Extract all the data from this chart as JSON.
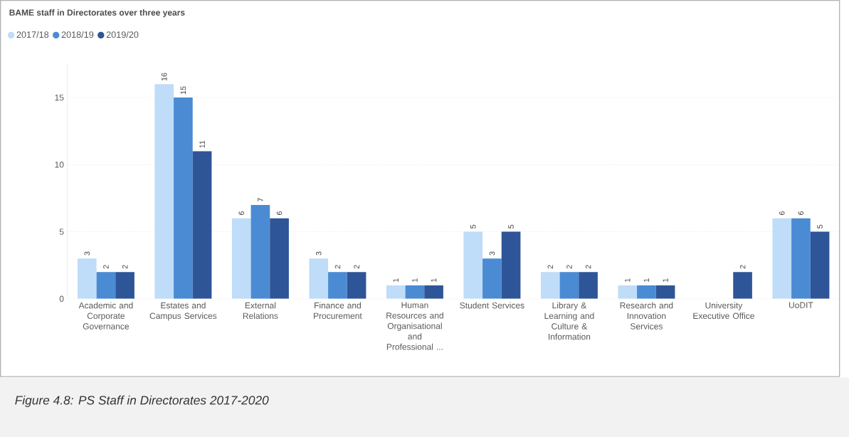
{
  "chart_data": {
    "type": "bar",
    "title": "BAME staff in Directorates over three years",
    "categories": [
      "Academic and Corporate Governance",
      "Estates and Campus Services",
      "External Relations",
      "Finance and Procurement",
      "Human Resources and Organisational and Professional ...",
      "Student Services",
      "Library & Learning and Culture & Information",
      "Research and Innovation Services",
      "University Executive Office",
      "UoDIT"
    ],
    "series": [
      {
        "name": "2017/18",
        "color": "#bfdcf8",
        "values": [
          3,
          16,
          6,
          3,
          1,
          5,
          2,
          1,
          null,
          6
        ]
      },
      {
        "name": "2018/19",
        "color": "#4a8bd4",
        "values": [
          2,
          15,
          7,
          2,
          1,
          3,
          2,
          1,
          null,
          6
        ]
      },
      {
        "name": "2019/20",
        "color": "#2e5597",
        "values": [
          2,
          11,
          6,
          2,
          1,
          5,
          2,
          1,
          2,
          5
        ]
      }
    ],
    "ylim": [
      0,
      17.5
    ],
    "yticks": [
      0,
      5,
      10,
      15
    ],
    "grid": "y",
    "legend": "top left",
    "data_labels": true,
    "annotations": [
      "Figure 4.8: PS Staff in Directorates 2017-2020"
    ]
  }
}
